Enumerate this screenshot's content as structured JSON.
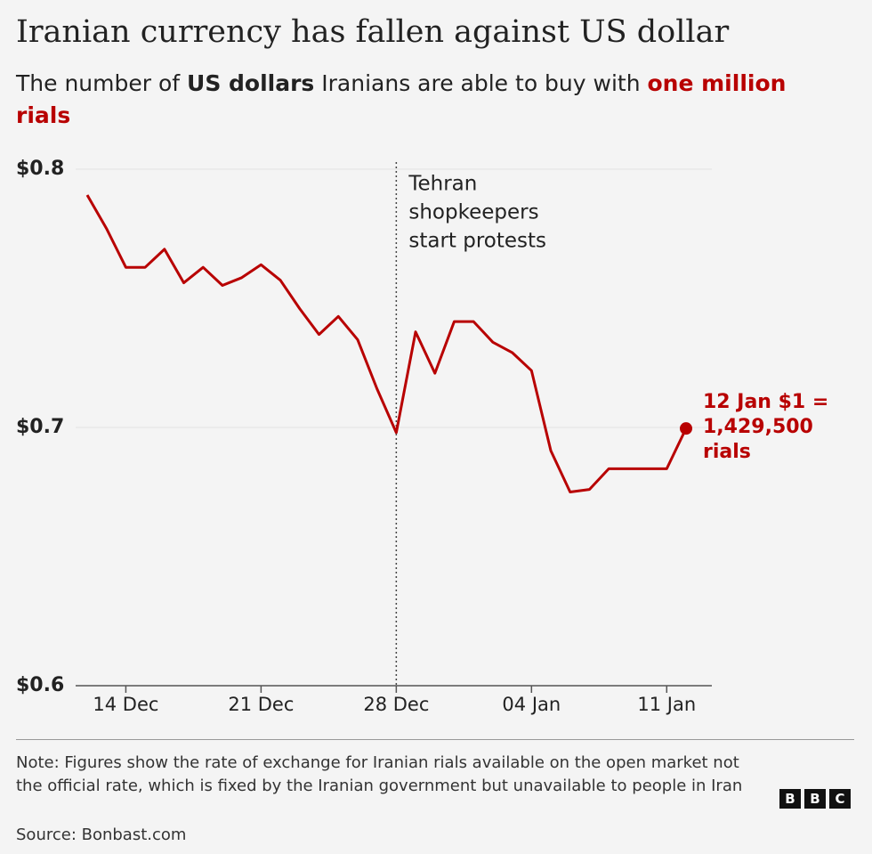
{
  "chart_data": {
    "type": "line",
    "title": "Iranian currency has fallen against US dollar",
    "subtitle": [
      {
        "text": "The number of ",
        "style": "normal"
      },
      {
        "text": "US dollars",
        "style": "bold"
      },
      {
        "text": " Iranians are able to buy with ",
        "style": "normal"
      },
      {
        "text": "one million rials",
        "style": "highlight"
      }
    ],
    "x": [
      "12 Dec",
      "13 Dec",
      "14 Dec",
      "15 Dec",
      "16 Dec",
      "17 Dec",
      "18 Dec",
      "19 Dec",
      "20 Dec",
      "21 Dec",
      "22 Dec",
      "23 Dec",
      "24 Dec",
      "25 Dec",
      "26 Dec",
      "27 Dec",
      "28 Dec",
      "29 Dec",
      "30 Dec",
      "31 Dec",
      "01 Jan",
      "02 Jan",
      "03 Jan",
      "04 Jan",
      "05 Jan",
      "06 Jan",
      "07 Jan",
      "08 Jan",
      "09 Jan",
      "10 Jan",
      "11 Jan",
      "12 Jan"
    ],
    "xticks": [
      "14 Dec",
      "21 Dec",
      "28 Dec",
      "04 Jan",
      "11 Jan"
    ],
    "series": [
      {
        "color": "#b80000",
        "values": [
          0.79,
          0.777,
          0.762,
          0.762,
          0.769,
          0.756,
          0.762,
          0.755,
          0.758,
          0.763,
          0.757,
          0.746,
          0.736,
          0.743,
          0.734,
          0.715,
          0.698,
          0.737,
          0.721,
          0.741,
          0.741,
          0.733,
          0.729,
          0.722,
          0.691,
          0.675,
          0.676,
          0.684,
          0.684,
          0.684,
          0.684,
          0.6996
        ]
      }
    ],
    "ylim": [
      0.6,
      0.8
    ],
    "yticks": [
      {
        "value": 0.6,
        "label": "$0.6"
      },
      {
        "value": 0.7,
        "label": "$0.7"
      },
      {
        "value": 0.8,
        "label": "$0.8"
      }
    ],
    "grid": true,
    "event": {
      "x": "28 Dec",
      "lines": [
        "Tehran",
        "shopkeepers",
        "start protests"
      ]
    },
    "end_label": [
      "12 Jan $1 =",
      "1,429,500",
      "rials"
    ],
    "note": "Note: Figures show the rate of exchange for Iranian rials available on the open market not the official rate, which is fixed by the Iranian government but unavailable to people in Iran",
    "source": "Source: Bonbast.com",
    "logo": [
      "B",
      "B",
      "C"
    ]
  }
}
